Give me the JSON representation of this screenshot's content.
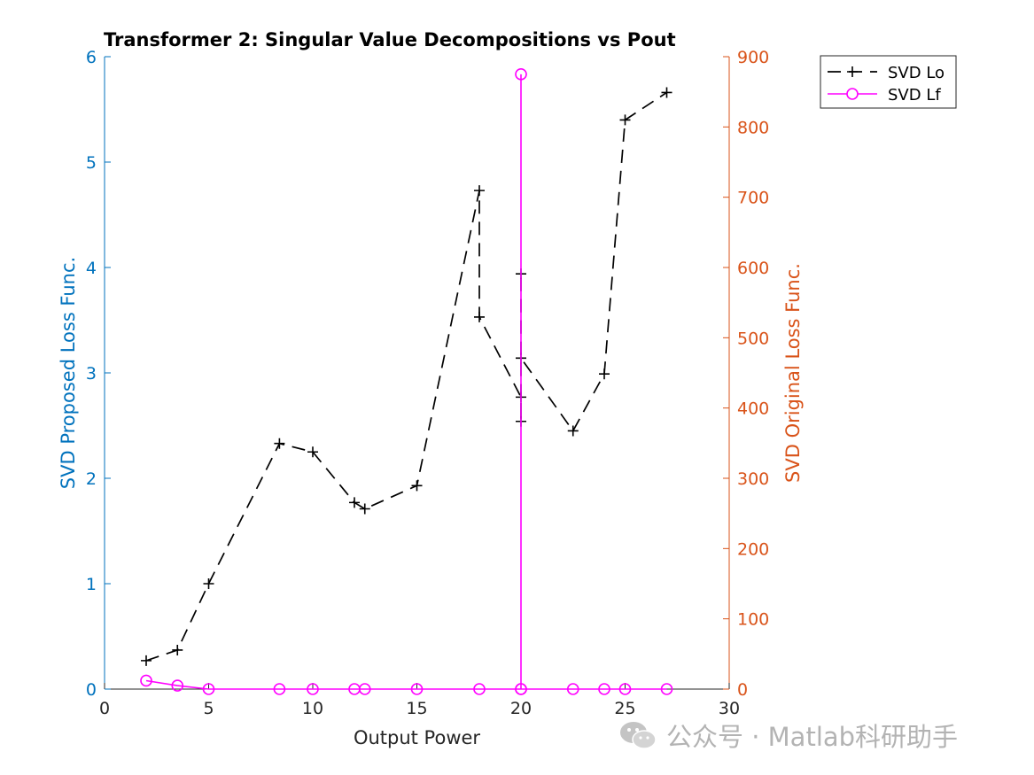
{
  "chart_data": {
    "type": "line",
    "title": "Transformer 2: Singular Value Decompositions vs Pout",
    "xlabel": "Output Power",
    "ylabel_left": "SVD Proposed Loss Func.",
    "ylabel_right": "SVD Original Loss Func.",
    "xlim": [
      0,
      30
    ],
    "ylim_left": [
      0,
      6
    ],
    "ylim_right": [
      0,
      900
    ],
    "x_ticks": [
      0,
      5,
      10,
      15,
      20,
      25,
      30
    ],
    "y_ticks_left": [
      0,
      1,
      2,
      3,
      4,
      5,
      6
    ],
    "y_ticks_right": [
      0,
      100,
      200,
      300,
      400,
      500,
      600,
      700,
      800,
      900
    ],
    "grid": false,
    "legend_position": "outside-top-right",
    "colors": {
      "left_axis": "#0072BD",
      "right_axis": "#D95319",
      "series_lo": "#000000",
      "series_lf": "#FF00FF"
    },
    "series": [
      {
        "name": "SVD Lo",
        "axis": "left",
        "style": "dashed-plus",
        "x": [
          2,
          3.5,
          5,
          8.4,
          10,
          12,
          12.5,
          15,
          18,
          18,
          20,
          20,
          20,
          20,
          22.5,
          24,
          25,
          27
        ],
        "y": [
          0.27,
          0.37,
          1.0,
          2.33,
          2.25,
          1.77,
          1.71,
          1.93,
          4.73,
          3.53,
          2.77,
          2.54,
          3.94,
          3.14,
          2.45,
          2.99,
          5.4,
          5.66
        ]
      },
      {
        "name": "SVD Lf",
        "axis": "right",
        "style": "solid-circle",
        "x": [
          2,
          3.5,
          5,
          8.4,
          10,
          12,
          12.5,
          15,
          18,
          20,
          20,
          20,
          22.5,
          24,
          25,
          27
        ],
        "y": [
          12,
          5,
          0,
          0,
          0,
          0,
          0,
          0,
          0,
          0,
          875,
          0,
          0,
          0,
          0,
          0
        ]
      }
    ]
  },
  "watermark": {
    "text": "公众号 · Matlab科研助手",
    "icon": "wechat-icon"
  }
}
